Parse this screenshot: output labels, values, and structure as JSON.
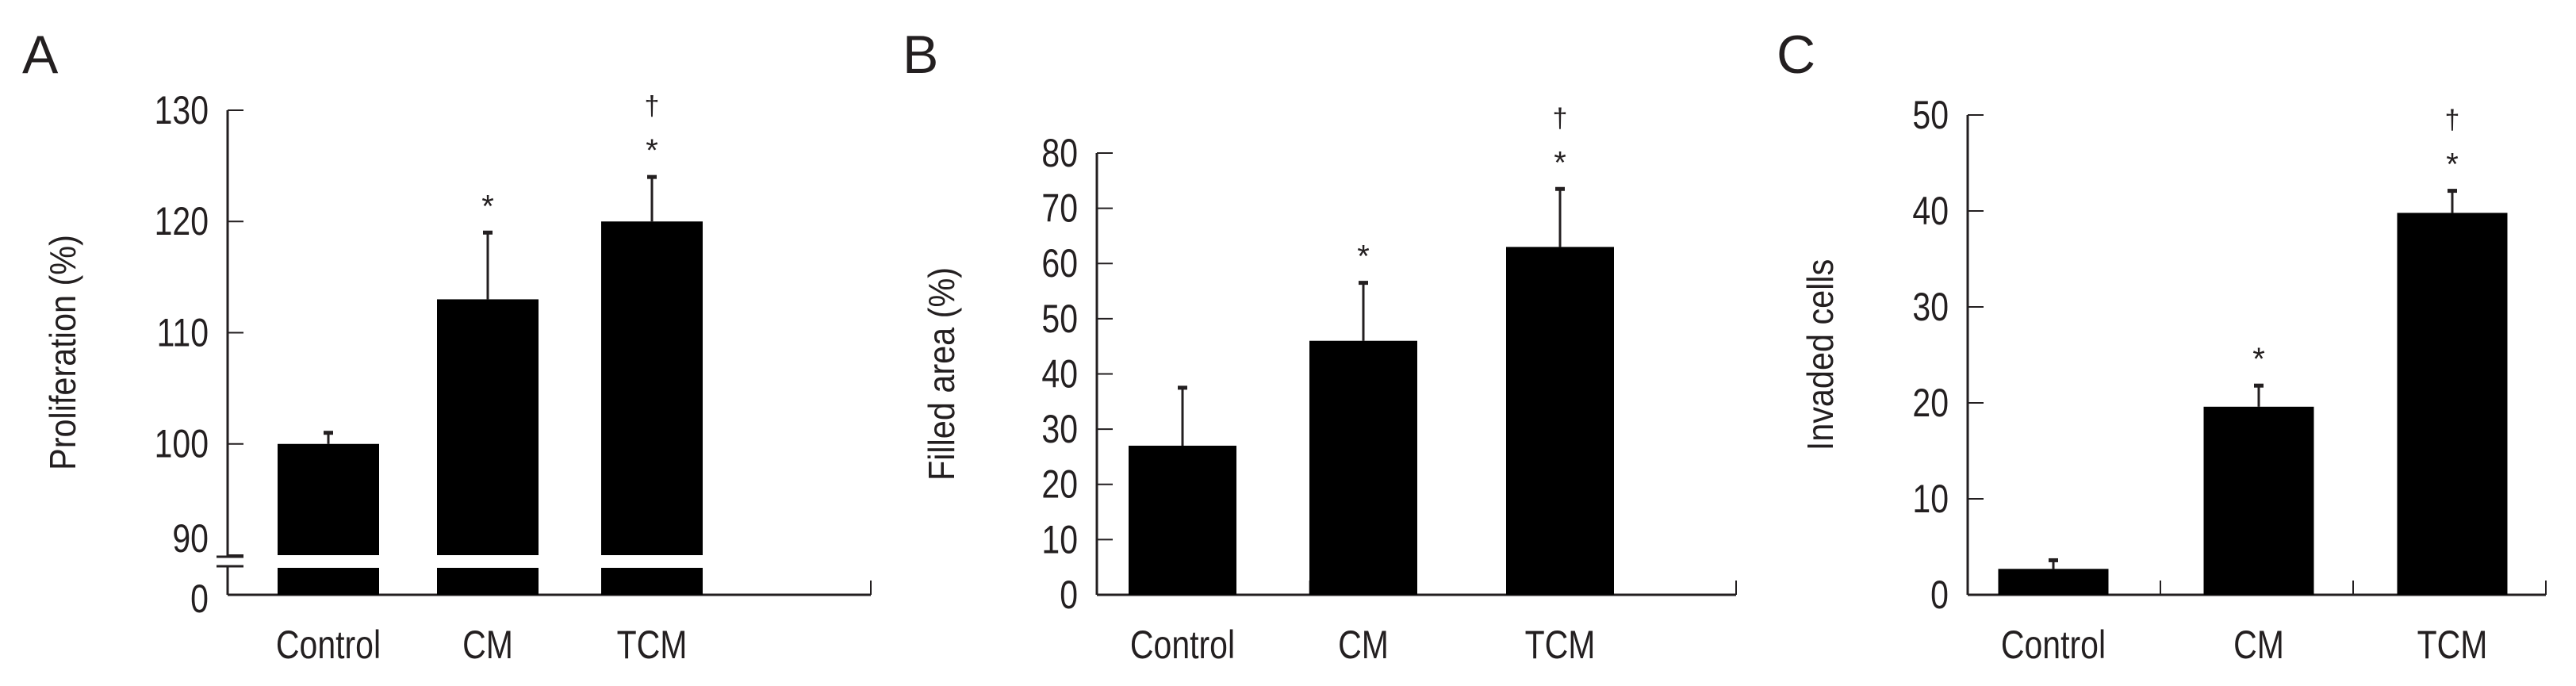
{
  "chart_data": [
    {
      "panel": "A",
      "type": "bar",
      "categories": [
        "Control",
        "CM",
        "TCM"
      ],
      "values": [
        100,
        113,
        120
      ],
      "error_upper": [
        101,
        119,
        124
      ],
      "annotations": [
        [],
        [
          "*"
        ],
        [
          "*",
          "†"
        ]
      ],
      "ylabel": "Proliferation (%)",
      "yticks": [
        0,
        90,
        100,
        110,
        120,
        130
      ],
      "ylim": [
        90,
        130
      ],
      "axis_break": true,
      "bar_color": "#000000"
    },
    {
      "panel": "B",
      "type": "bar",
      "categories": [
        "Control",
        "CM",
        "TCM"
      ],
      "values": [
        27,
        46,
        63
      ],
      "error_upper": [
        37.5,
        56.5,
        73.5
      ],
      "annotations": [
        [],
        [
          "*"
        ],
        [
          "*",
          "†"
        ]
      ],
      "ylabel": "Filled area (%)",
      "yticks": [
        0,
        10,
        20,
        30,
        40,
        50,
        60,
        70,
        80
      ],
      "ylim": [
        0,
        80
      ],
      "axis_break": false,
      "bar_color": "#000000"
    },
    {
      "panel": "C",
      "type": "bar",
      "categories": [
        "Control",
        "CM",
        "TCM"
      ],
      "values": [
        2.7,
        19.6,
        39.8
      ],
      "error_upper": [
        3.6,
        21.8,
        42.1
      ],
      "annotations": [
        [],
        [
          "*"
        ],
        [
          "*",
          "†"
        ]
      ],
      "ylabel": "Invaded cells",
      "yticks": [
        0,
        10,
        20,
        30,
        40,
        50
      ],
      "ylim": [
        0,
        50
      ],
      "axis_break": false,
      "bar_color": "#000000"
    }
  ]
}
